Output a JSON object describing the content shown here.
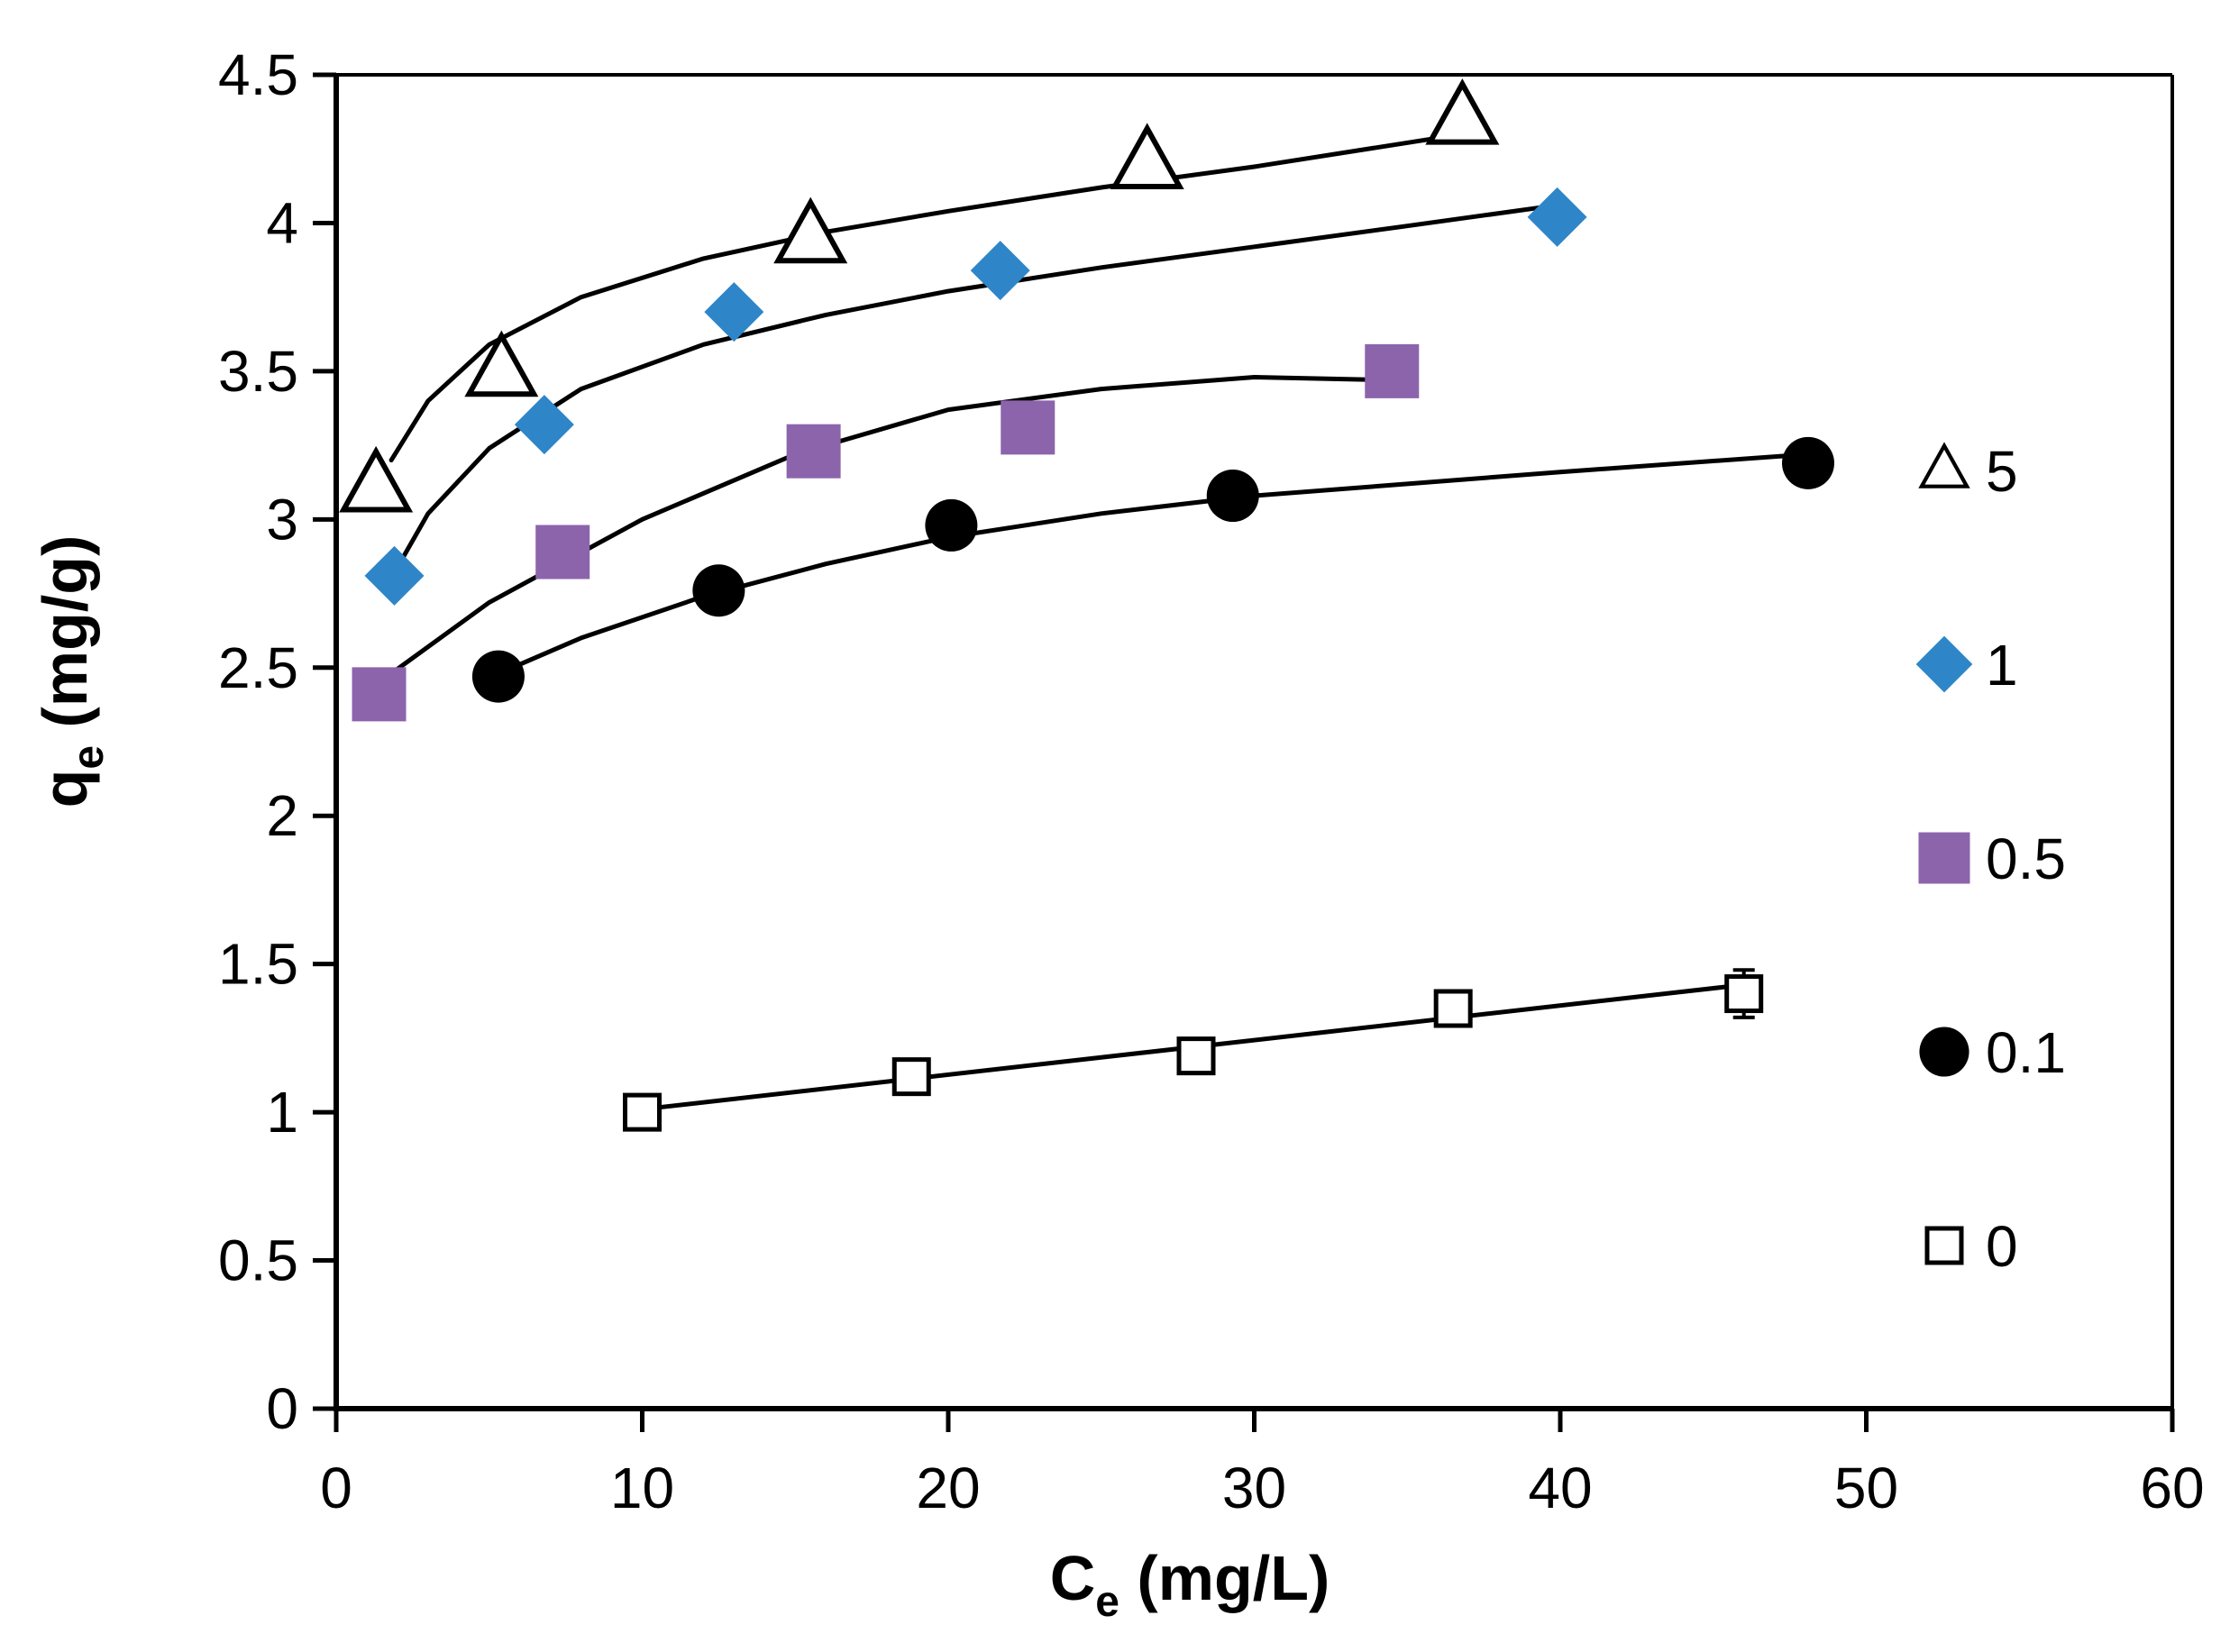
{
  "chart_data": {
    "type": "scatter",
    "title": "",
    "xlabel": {
      "main": "C",
      "sub": "e",
      "unit": " (mg/L)"
    },
    "ylabel": {
      "main": "q",
      "sub": "e",
      "unit": " (mg/g)"
    },
    "xlim": [
      0,
      60
    ],
    "ylim": [
      0,
      4.5
    ],
    "xticks": [
      0,
      10,
      20,
      30,
      40,
      50,
      60
    ],
    "yticks": [
      0,
      0.5,
      1,
      1.5,
      2,
      2.5,
      3,
      3.5,
      4,
      4.5
    ],
    "xtick_labels": [
      "0",
      "10",
      "20",
      "30",
      "40",
      "50",
      "60"
    ],
    "ytick_labels": [
      "0",
      "0.5",
      "1",
      "1.5",
      "2",
      "2.5",
      "3",
      "3.5",
      "4",
      "4.5"
    ],
    "grid": false,
    "legend_position": "right",
    "series": [
      {
        "name": "5",
        "marker": "open-triangle",
        "color": "#000000",
        "x": [
          1.3,
          5.4,
          15.5,
          26.5,
          36.8
        ],
        "y": [
          3.11,
          3.5,
          3.95,
          4.2,
          4.35
        ],
        "fit_curve": {
          "x": [
            1.8,
            3,
            5,
            8,
            12,
            16,
            20,
            25,
            30,
            36.8
          ],
          "y": [
            3.2,
            3.4,
            3.59,
            3.75,
            3.88,
            3.97,
            4.04,
            4.12,
            4.19,
            4.3
          ]
        }
      },
      {
        "name": "1",
        "marker": "filled-diamond",
        "color": "#2e86c8",
        "x": [
          1.9,
          6.8,
          13.0,
          21.7,
          39.9
        ],
        "y": [
          2.81,
          3.32,
          3.7,
          3.84,
          4.02
        ],
        "fit_curve": {
          "x": [
            1.9,
            3,
            5,
            8,
            12,
            16,
            20,
            25,
            30,
            35,
            39.9
          ],
          "y": [
            2.82,
            3.02,
            3.24,
            3.44,
            3.59,
            3.69,
            3.77,
            3.85,
            3.92,
            3.99,
            4.06
          ]
        }
      },
      {
        "name": "0.5",
        "marker": "filled-square",
        "color": "#8c64ac",
        "x": [
          1.4,
          7.4,
          15.6,
          22.6,
          34.5
        ],
        "y": [
          2.41,
          2.89,
          3.23,
          3.31,
          3.5
        ],
        "fit_curve": {
          "x": [
            1.4,
            5,
            10,
            15,
            20,
            25,
            30,
            34.5
          ],
          "y": [
            2.45,
            2.72,
            3.0,
            3.22,
            3.37,
            3.44,
            3.48,
            3.47
          ]
        }
      },
      {
        "name": "0.1",
        "marker": "filled-circle",
        "color": "#000000",
        "x": [
          5.3,
          12.5,
          20.1,
          29.3,
          48.1
        ],
        "y": [
          2.47,
          2.76,
          2.98,
          3.08,
          3.19
        ],
        "fit_curve": {
          "x": [
            5.3,
            8,
            12,
            16,
            20,
            25,
            30,
            35,
            40,
            48.1
          ],
          "y": [
            2.48,
            2.6,
            2.74,
            2.85,
            2.94,
            3.02,
            3.08,
            3.12,
            3.16,
            3.22
          ]
        }
      },
      {
        "name": "0",
        "marker": "open-square",
        "color": "#000000",
        "x": [
          10.0,
          18.8,
          28.1,
          36.5,
          46.0
        ],
        "y": [
          1.0,
          1.12,
          1.19,
          1.35,
          1.4
        ],
        "error": [
          0.03,
          0.03,
          0.03,
          0.04,
          0.08
        ],
        "fit_curve": {
          "x": [
            10.0,
            46.0
          ],
          "y": [
            1.01,
            1.43
          ]
        }
      }
    ]
  }
}
